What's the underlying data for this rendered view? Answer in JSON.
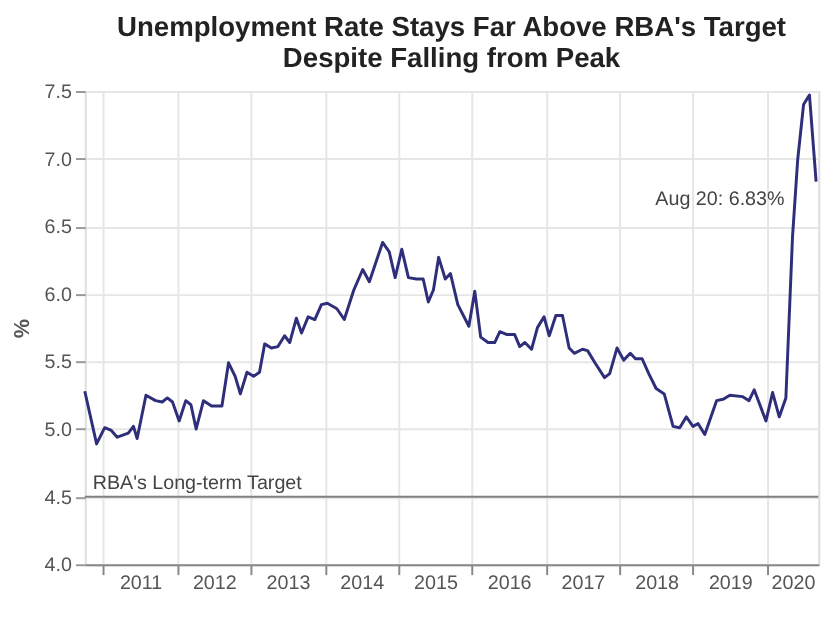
{
  "chart_data": {
    "type": "line",
    "title": [
      "Unemployment Rate Stays Far Above RBA's Target",
      "Despite Falling from Peak"
    ],
    "ylabel": "%",
    "x": [
      2010.75,
      2010.91,
      2011.02,
      2011.11,
      2011.19,
      2011.34,
      2011.41,
      2011.46,
      2011.58,
      2011.71,
      2011.8,
      2011.87,
      2011.94,
      2012.03,
      2012.12,
      2012.19,
      2012.26,
      2012.36,
      2012.47,
      2012.61,
      2012.7,
      2012.79,
      2012.86,
      2012.95,
      2013.04,
      2013.12,
      2013.19,
      2013.28,
      2013.37,
      2013.46,
      2013.53,
      2013.62,
      2013.69,
      2013.78,
      2013.87,
      2013.96,
      2014.04,
      2014.17,
      2014.27,
      2014.4,
      2014.52,
      2014.61,
      2014.79,
      2014.88,
      2014.96,
      2015.05,
      2015.14,
      2015.25,
      2015.34,
      2015.41,
      2015.48,
      2015.55,
      2015.64,
      2015.71,
      2015.81,
      2015.96,
      2016.04,
      2016.12,
      2016.22,
      2016.31,
      2016.38,
      2016.47,
      2016.58,
      2016.65,
      2016.72,
      2016.81,
      2016.89,
      2016.98,
      2017.05,
      2017.14,
      2017.23,
      2017.32,
      2017.39,
      2017.5,
      2017.57,
      2017.67,
      2017.8,
      2017.87,
      2017.97,
      2018.06,
      2018.15,
      2018.22,
      2018.31,
      2018.4,
      2018.5,
      2018.61,
      2018.73,
      2018.82,
      2018.91,
      2019.0,
      2019.07,
      2019.16,
      2019.32,
      2019.41,
      2019.5,
      2019.67,
      2019.76,
      2019.83,
      2019.99,
      2020.08,
      2020.17,
      2020.26,
      2020.35,
      2020.42,
      2020.5,
      2020.58,
      2020.67
    ],
    "series": [
      {
        "color": "#2e2e7a",
        "values": [
          5.28,
          4.89,
          5.01,
          4.99,
          4.94,
          4.97,
          5.02,
          4.93,
          5.25,
          5.21,
          5.2,
          5.23,
          5.2,
          5.06,
          5.21,
          5.18,
          5.0,
          5.21,
          5.17,
          5.17,
          5.49,
          5.39,
          5.26,
          5.42,
          5.39,
          5.42,
          5.63,
          5.6,
          5.61,
          5.69,
          5.64,
          5.82,
          5.71,
          5.83,
          5.81,
          5.92,
          5.93,
          5.89,
          5.81,
          6.03,
          6.18,
          6.09,
          6.38,
          6.31,
          6.12,
          6.33,
          6.12,
          6.11,
          6.11,
          5.94,
          6.03,
          6.27,
          6.11,
          6.15,
          5.92,
          5.76,
          6.02,
          5.68,
          5.64,
          5.64,
          5.72,
          5.7,
          5.7,
          5.61,
          5.64,
          5.59,
          5.75,
          5.83,
          5.69,
          5.84,
          5.84,
          5.6,
          5.56,
          5.59,
          5.58,
          5.49,
          5.38,
          5.41,
          5.6,
          5.51,
          5.56,
          5.52,
          5.52,
          5.41,
          5.3,
          5.26,
          5.02,
          5.01,
          5.09,
          5.02,
          5.04,
          4.96,
          5.21,
          5.22,
          5.25,
          5.24,
          5.21,
          5.29,
          5.06,
          5.27,
          5.09,
          5.23,
          6.42,
          6.99,
          7.4,
          7.47,
          6.83
        ]
      }
    ],
    "xlim": [
      2010.75,
      2020.7
    ],
    "xticks": [
      {
        "value": 2011,
        "label": null
      },
      {
        "value": 2012,
        "label": null
      },
      {
        "value": 2013,
        "label": null
      },
      {
        "value": 2014,
        "label": null
      },
      {
        "value": 2015,
        "label": null
      },
      {
        "value": 2016,
        "label": null
      },
      {
        "value": 2017,
        "label": null
      },
      {
        "value": 2018,
        "label": null
      },
      {
        "value": 2019,
        "label": null
      },
      {
        "value": 2020,
        "label": null
      },
      {
        "value": 2011.5,
        "label": "2011"
      },
      {
        "value": 2012.5,
        "label": "2012"
      },
      {
        "value": 2013.5,
        "label": "2013"
      },
      {
        "value": 2014.5,
        "label": "2014"
      },
      {
        "value": 2015.5,
        "label": "2015"
      },
      {
        "value": 2016.5,
        "label": "2016"
      },
      {
        "value": 2017.5,
        "label": "2017"
      },
      {
        "value": 2018.5,
        "label": "2018"
      },
      {
        "value": 2019.5,
        "label": "2019"
      },
      {
        "value": 2020.35,
        "label": "2020"
      }
    ],
    "ylim": [
      4.0,
      7.5
    ],
    "yticks": [
      {
        "value": 4.0,
        "label": "4.0"
      },
      {
        "value": 4.5,
        "label": "4.5"
      },
      {
        "value": 5.0,
        "label": "5.0"
      },
      {
        "value": 5.5,
        "label": "5.5"
      },
      {
        "value": 6.0,
        "label": "6.0"
      },
      {
        "value": 6.5,
        "label": "6.5"
      },
      {
        "value": 7.0,
        "label": "7.0"
      },
      {
        "value": 7.5,
        "label": "7.5"
      }
    ],
    "grid": true,
    "marker": "none",
    "line_style": "solid",
    "ref_lines": [
      {
        "axis": "y",
        "value": 4.5,
        "label": "RBA's Long-term Target",
        "color": "#808080"
      }
    ],
    "annotations": [
      {
        "text": "Aug 20: 6.83%",
        "x": 2020.67,
        "y": 6.83
      }
    ]
  }
}
